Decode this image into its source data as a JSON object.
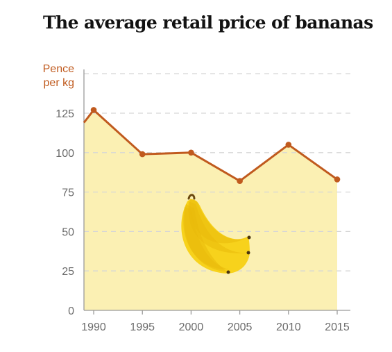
{
  "title": "The average retail price of bananas",
  "colors": {
    "line": "#c05a1e",
    "area": "#fbf0b3",
    "grid": "#d6d6d6",
    "axis": "#9a9a9a",
    "banana": "#f7d21c",
    "banana_shade": "#e9b90b"
  },
  "illustration": "banana-bunch-icon",
  "chart_data": {
    "type": "area",
    "title": "The average retail price of bananas",
    "xlabel": "",
    "ylabel_lines": [
      "Pence",
      "per kg"
    ],
    "x_ticks": [
      "1990",
      "1995",
      "2000",
      "2005",
      "2010",
      "2015"
    ],
    "y_ticks": [
      "0",
      "25",
      "50",
      "75",
      "100",
      "125"
    ],
    "ylim": [
      0,
      150
    ],
    "xlim": [
      1989,
      2015
    ],
    "grid": true,
    "series": [
      {
        "x": [
          1989,
          1990,
          1995,
          2000,
          2005,
          2010,
          2015
        ],
        "y": [
          119,
          127,
          99,
          100,
          82,
          105,
          83
        ]
      }
    ]
  }
}
